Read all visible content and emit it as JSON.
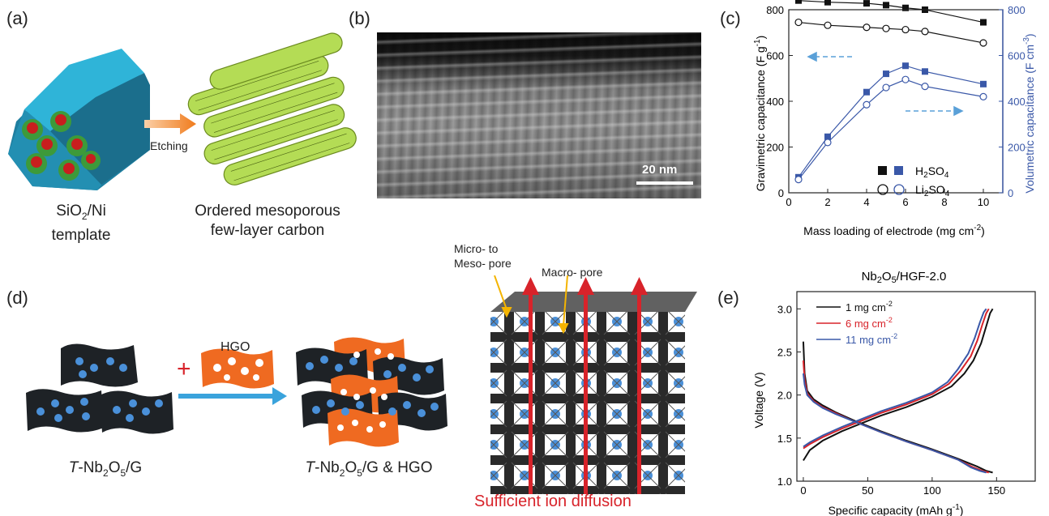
{
  "panel_a": {
    "label": "(a)",
    "arrow_label": "Etching",
    "template_caption_l1": "SiO",
    "template_caption_sub": "2",
    "template_caption_rest": "/Ni",
    "template_caption_l2": "template",
    "carbon_caption_l1": "Ordered mesoporous",
    "carbon_caption_l2": "few-layer carbon",
    "colors": {
      "template": "#2aa6c8",
      "sphere": "#c81e1e",
      "carbon": "#9ccf3a"
    }
  },
  "panel_b": {
    "label": "(b)",
    "scale_label": "20 nm"
  },
  "panel_c": {
    "label": "(c)",
    "chart_data": {
      "type": "line",
      "xlabel_main": "Mass loading of electrode (mg cm",
      "xlabel_sup": "-2",
      "xlabel_end": ")",
      "ylabel_left": "Gravimetric capacitance (F g",
      "ylabel_left_sup": "-1",
      "ylabel_left_end": ")",
      "ylabel_right": "Volumetric capacitance (F cm",
      "ylabel_right_sup": "-3",
      "ylabel_right_end": ")",
      "xlim": [
        0,
        11
      ],
      "ylim_left": [
        0,
        800
      ],
      "ylim_right": [
        0,
        800
      ],
      "x_ticks": [
        0,
        2,
        4,
        6,
        8,
        10
      ],
      "y_left_ticks": [
        0,
        200,
        400,
        600,
        800
      ],
      "y_right_ticks": [
        0,
        200,
        400,
        600,
        800
      ],
      "legend": {
        "h2so4_base": "H",
        "h2so4_sub": "2",
        "h2so4_rest": "SO",
        "h2so4_sub2": "4",
        "li2so4_base": "Li",
        "li2so4_sub": "2",
        "li2so4_rest": "SO",
        "li2so4_sub2": "4"
      },
      "series": [
        {
          "axis": "left",
          "marker": "filled-square",
          "color": "#111111",
          "x": [
            0.5,
            2,
            4,
            5,
            6,
            7,
            10
          ],
          "y": [
            840,
            833,
            828,
            820,
            808,
            800,
            745
          ]
        },
        {
          "axis": "left",
          "marker": "open-circle",
          "color": "#111111",
          "x": [
            0.5,
            2,
            4,
            5,
            6,
            7,
            10
          ],
          "y": [
            745,
            732,
            723,
            718,
            713,
            705,
            655
          ]
        },
        {
          "axis": "right",
          "marker": "filled-square",
          "color": "#3a58a8",
          "x": [
            0.5,
            2,
            4,
            5,
            6,
            7,
            10
          ],
          "y": [
            68,
            245,
            440,
            520,
            555,
            530,
            475
          ]
        },
        {
          "axis": "right",
          "marker": "open-circle",
          "color": "#3a58a8",
          "x": [
            0.5,
            2,
            4,
            5,
            6,
            7,
            10
          ],
          "y": [
            58,
            220,
            385,
            460,
            495,
            465,
            420
          ]
        }
      ]
    }
  },
  "panel_d": {
    "label": "(d)",
    "hgo_label": "HGO",
    "plus": "+",
    "caption1_italic": "T",
    "caption1_a": "-Nb",
    "caption1_sub1": "2",
    "caption1_b": "O",
    "caption1_sub2": "5",
    "caption1_c": "/G",
    "caption2_italic": "T",
    "caption2_a": "-Nb",
    "caption2_sub1": "2",
    "caption2_b": "O",
    "caption2_sub2": "5",
    "caption2_c": "/G & HGO",
    "micro_label_l1": "Micro- to",
    "micro_label_l2": "Meso- pore",
    "macro_label": "Macro- pore",
    "diffusion_label": "Sufficient ion diffusion",
    "colors": {
      "sheet": "#1e2226",
      "dot": "#4a90d9",
      "hgo": "#ef6a21",
      "arrow": "#3aa3dc",
      "ion": "#d8232a"
    }
  },
  "panel_e": {
    "label": "(e)",
    "chart_data": {
      "type": "line",
      "title_a": "Nb",
      "title_sub1": "2",
      "title_b": "O",
      "title_sub2": "5",
      "title_c": "/HGF-2.0",
      "xlabel_main": "Specific capacity (mAh g",
      "xlabel_sup": "-1",
      "xlabel_end": ")",
      "ylabel": "Voltage (V)",
      "xlim": [
        -5,
        180
      ],
      "ylim": [
        1.0,
        3.2
      ],
      "x_ticks": [
        0,
        50,
        100,
        150
      ],
      "y_ticks": [
        1.0,
        1.5,
        2.0,
        2.5,
        3.0
      ],
      "series": [
        {
          "name": "1 mg cm",
          "sup": "-2",
          "color": "#111111",
          "charge_x": [
            0,
            5,
            15,
            30,
            45,
            60,
            80,
            100,
            115,
            125,
            132,
            138,
            142,
            145,
            147
          ],
          "charge_y": [
            1.24,
            1.36,
            1.47,
            1.58,
            1.67,
            1.76,
            1.86,
            1.98,
            2.1,
            2.25,
            2.4,
            2.6,
            2.8,
            2.95,
            3.0
          ],
          "discharge_x": [
            0,
            1,
            3,
            8,
            15,
            25,
            40,
            60,
            80,
            100,
            120,
            135,
            142,
            147
          ],
          "discharge_y": [
            2.62,
            2.25,
            2.05,
            1.95,
            1.88,
            1.8,
            1.7,
            1.58,
            1.47,
            1.37,
            1.26,
            1.17,
            1.12,
            1.1
          ]
        },
        {
          "name": "6 mg cm",
          "sup": "-2",
          "color": "#d8232a",
          "charge_x": [
            0,
            5,
            15,
            30,
            45,
            60,
            80,
            100,
            113,
            122,
            130,
            135,
            139,
            142,
            144
          ],
          "charge_y": [
            1.38,
            1.43,
            1.51,
            1.61,
            1.7,
            1.79,
            1.89,
            2.01,
            2.13,
            2.28,
            2.45,
            2.63,
            2.82,
            2.95,
            3.0
          ],
          "discharge_x": [
            0,
            1,
            3,
            8,
            15,
            25,
            40,
            60,
            80,
            100,
            120,
            132,
            139,
            144
          ],
          "discharge_y": [
            2.4,
            2.18,
            2.02,
            1.93,
            1.86,
            1.79,
            1.69,
            1.57,
            1.46,
            1.36,
            1.25,
            1.16,
            1.12,
            1.1
          ]
        },
        {
          "name": "11 mg cm",
          "sup": "-2",
          "color": "#3a58a8",
          "charge_x": [
            0,
            5,
            15,
            30,
            45,
            60,
            80,
            100,
            112,
            120,
            128,
            133,
            137,
            140,
            142
          ],
          "charge_y": [
            1.4,
            1.45,
            1.53,
            1.63,
            1.72,
            1.81,
            1.91,
            2.03,
            2.15,
            2.3,
            2.48,
            2.66,
            2.84,
            2.96,
            3.0
          ],
          "discharge_x": [
            0,
            1,
            3,
            8,
            15,
            25,
            40,
            60,
            80,
            100,
            120,
            130,
            137,
            142
          ],
          "discharge_y": [
            2.25,
            2.12,
            2.0,
            1.92,
            1.85,
            1.78,
            1.69,
            1.57,
            1.46,
            1.36,
            1.25,
            1.16,
            1.12,
            1.1
          ]
        }
      ]
    }
  }
}
